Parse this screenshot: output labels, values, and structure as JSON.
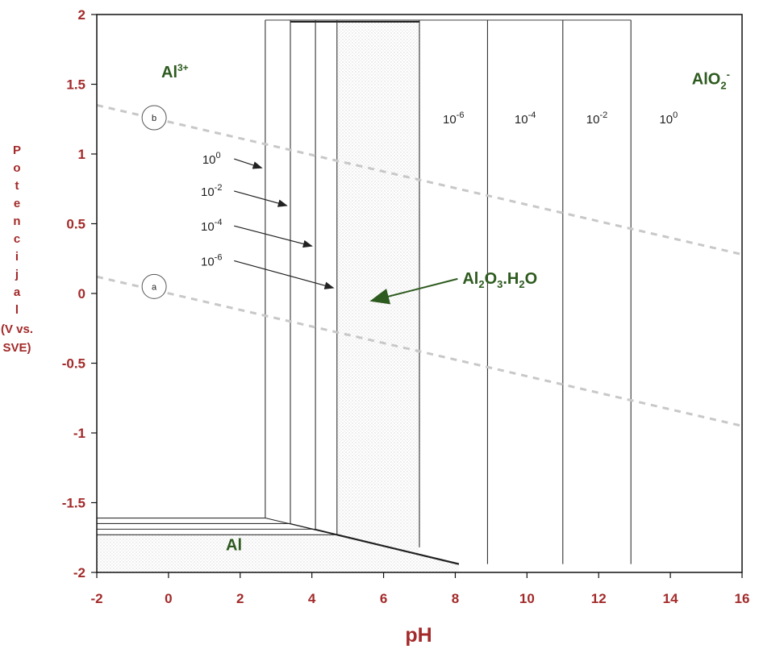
{
  "chart_data": {
    "type": "line",
    "xlabel": "pH",
    "ylabel_letters": [
      "P",
      "o",
      "t",
      "e",
      "n",
      "c",
      "i",
      "j",
      "a",
      "l"
    ],
    "ylabel_unit": [
      "(V vs.",
      "SVE)"
    ],
    "xlim": [
      -2,
      16
    ],
    "ylim": [
      -2,
      2
    ],
    "x_ticks": [
      "-2",
      "0",
      "2",
      "4",
      "6",
      "8",
      "10",
      "12",
      "14",
      "16"
    ],
    "y_ticks": [
      "-2",
      "-1.5",
      "-1",
      "-0.5",
      "0",
      "0.5",
      "1",
      "1.5",
      "2"
    ],
    "x_tick_values": [
      -2,
      0,
      2,
      4,
      6,
      8,
      10,
      12,
      14,
      16
    ],
    "y_tick_values": [
      -2,
      -1.5,
      -1,
      -0.5,
      0,
      0.5,
      1,
      1.5,
      2
    ],
    "grid": false,
    "top_potential": 1.96,
    "acid_boundaries": [
      {
        "label_base": "10",
        "label_exp": "0",
        "ph": 2.7,
        "bottom_e": -1.61
      },
      {
        "label_base": "10",
        "label_exp": "-2",
        "ph": 3.4,
        "bottom_e": -1.65
      },
      {
        "label_base": "10",
        "label_exp": "-4",
        "ph": 4.1,
        "bottom_e": -1.69
      },
      {
        "label_base": "10",
        "label_exp": "-6",
        "ph": 4.7,
        "bottom_e": -1.73
      }
    ],
    "alkaline_boundaries": [
      {
        "label_base": "10",
        "label_exp": "-6",
        "ph": 7.0,
        "bottom_e": -1.82
      },
      {
        "label_base": "10",
        "label_exp": "-4",
        "ph": 8.9,
        "bottom_e": -1.94
      },
      {
        "label_base": "10",
        "label_exp": "-2",
        "ph": 11.0,
        "bottom_e": -1.94
      },
      {
        "label_base": "10",
        "label_exp": "0",
        "ph": 12.9,
        "bottom_e": -1.94
      }
    ],
    "al_metal_line": {
      "x": [
        4.7,
        8.1
      ],
      "y": [
        -1.73,
        -1.94
      ]
    },
    "water_line_a": {
      "label": "a",
      "x": [
        -2,
        16
      ],
      "y": [
        0.12,
        -0.95
      ]
    },
    "water_line_b": {
      "label": "b",
      "x": [
        -2,
        16
      ],
      "y": [
        1.35,
        0.28
      ]
    },
    "marker_a": {
      "x": -0.4,
      "y": 0.05
    },
    "marker_b": {
      "x": -0.4,
      "y": 1.26
    },
    "regions": {
      "al3": {
        "base": "Al",
        "sup": "3+",
        "x": -0.2,
        "y": 1.55
      },
      "alo2": {
        "base": "AlO",
        "sub": "2",
        "sup": "-",
        "x": 14.6,
        "y": 1.5
      },
      "al": {
        "text": "Al",
        "x": 1.6,
        "y": -1.84
      },
      "oxide": {
        "parts": [
          "Al",
          "2",
          "O",
          "3",
          ".H",
          "2",
          "O"
        ],
        "x": 8.2,
        "y": 0.07,
        "arrow_to": {
          "x": 5.7,
          "y": -0.05
        }
      }
    },
    "acid_label_positions": [
      {
        "x": 1.2,
        "y": 0.93,
        "arrow_to": {
          "x": 2.6,
          "y": 0.9
        }
      },
      {
        "x": 1.2,
        "y": 0.7,
        "arrow_to": {
          "x": 3.3,
          "y": 0.63
        }
      },
      {
        "x": 1.2,
        "y": 0.45,
        "arrow_to": {
          "x": 4.0,
          "y": 0.34
        }
      },
      {
        "x": 1.2,
        "y": 0.2,
        "arrow_to": {
          "x": 4.6,
          "y": 0.04
        }
      }
    ],
    "alkaline_label_y": 1.22,
    "colors": {
      "axis_text": "#a32a2a",
      "region_text": "#2d5a1e",
      "water_line": "#c8c8c8",
      "stipple": "#e4e4e4"
    }
  }
}
